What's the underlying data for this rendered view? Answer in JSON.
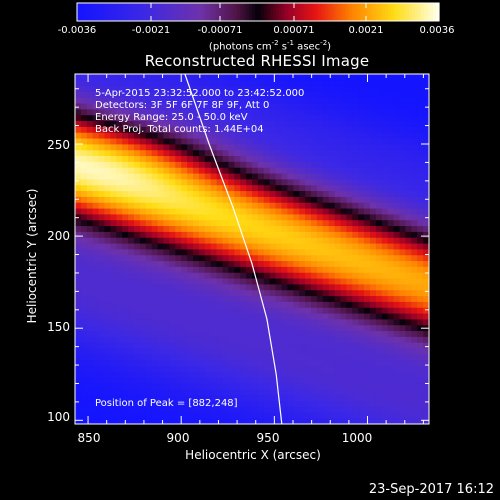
{
  "colorbar": {
    "ticks": [
      "-0.0036",
      "-0.0021",
      "-0.00071",
      "0.00071",
      "0.0021",
      "0.0036"
    ],
    "unit_prefix": "(photons cm",
    "unit_exp1": "-2",
    "unit_mid1": " s",
    "unit_exp2": "-1",
    "unit_mid2": " asec",
    "unit_exp3": "-2",
    "unit_suffix": ")"
  },
  "chart_data": {
    "type": "heatmap",
    "title": "Reconstructed RHESSI Image",
    "xlabel": "Heliocentric X (arcsec)",
    "ylabel": "Heliocentric Y (arcsec)",
    "xlim": [
      843,
      1033
    ],
    "ylim": [
      98,
      288
    ],
    "xticks": [
      "850",
      "900",
      "950",
      "1000"
    ],
    "yticks": [
      "100",
      "150",
      "200",
      "250"
    ],
    "zlim": [
      -0.0036,
      0.0036
    ],
    "colormap": "rhessi-hot",
    "annotations": [
      "5-Apr-2015 23:32:52.000 to 23:42:52.000",
      "Detectors: 3F 5F 6F 7F 8F 9F, Att 0",
      "Energy Range: 25.0 - 50.0 keV",
      "Back Proj. Total counts: 1.44E+04"
    ],
    "peak_label": "Position of Peak = [882,248]",
    "peak": [
      882,
      248
    ],
    "limb_curve": [
      [
        902,
        288
      ],
      [
        915,
        250
      ],
      [
        928,
        215
      ],
      [
        938,
        185
      ],
      [
        946,
        155
      ],
      [
        951,
        125
      ],
      [
        954,
        98
      ]
    ]
  },
  "footer": {
    "date": "23-Sep-2017 16:12"
  }
}
